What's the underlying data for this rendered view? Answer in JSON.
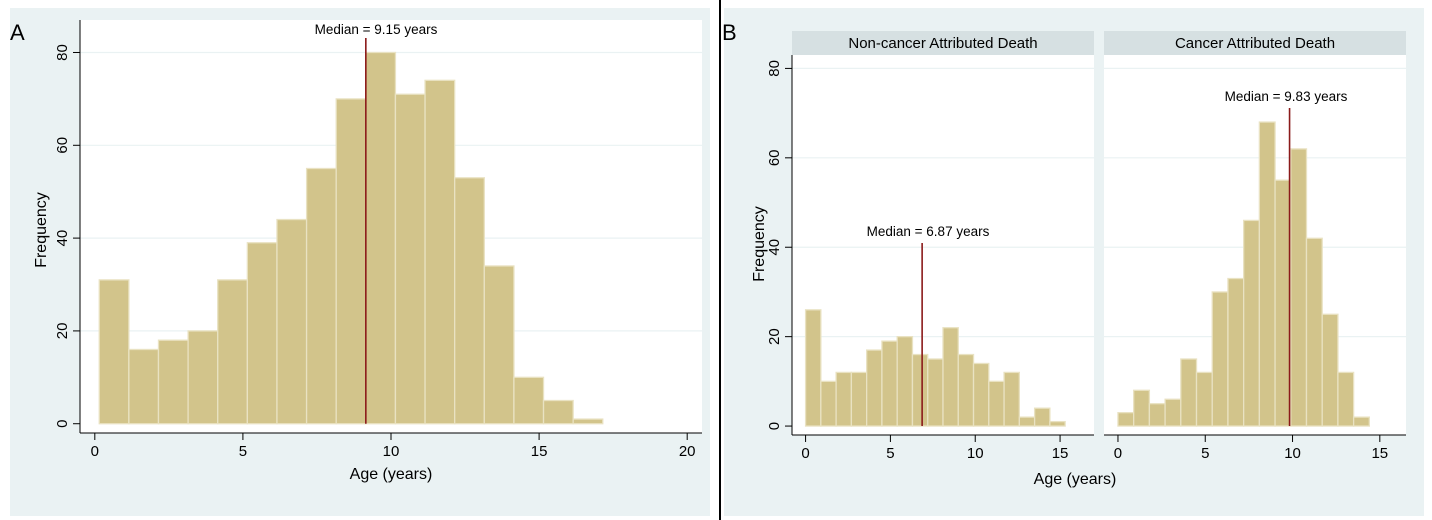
{
  "chart_data": [
    {
      "panel_label": "A",
      "type": "bar",
      "subtype": "histogram",
      "xlabel": "Age (years)",
      "ylabel": "Frequency",
      "xlim": [
        -0.5,
        20.5
      ],
      "ylim": [
        -2,
        87
      ],
      "xticks": [
        0,
        5,
        10,
        15,
        20
      ],
      "yticks": [
        0,
        20,
        40,
        60,
        80
      ],
      "grid": true,
      "bin_start": 0.15,
      "bin_width": 1.0,
      "values": [
        31,
        16,
        18,
        20,
        31,
        39,
        44,
        55,
        70,
        80,
        71,
        74,
        53,
        34,
        10,
        5,
        1
      ],
      "median": {
        "value": 9.15,
        "label": "Median = 9.15 years"
      }
    },
    {
      "panel_label": "B",
      "type": "bar",
      "subtype": "histogram",
      "xlabel": "Age (years)",
      "ylabel": "Frequency",
      "ylim": [
        -2,
        83
      ],
      "yticks": [
        0,
        20,
        40,
        60,
        80
      ],
      "grid": true,
      "facets": [
        {
          "title": "Non-cancer Attributed Death",
          "xlim": [
            -0.8,
            17
          ],
          "xticks": [
            0,
            5,
            10,
            15
          ],
          "bin_start": 0.0,
          "bin_width": 0.9,
          "values": [
            26,
            10,
            12,
            12,
            17,
            19,
            20,
            16,
            15,
            22,
            16,
            14,
            10,
            12,
            2,
            4,
            1
          ],
          "median": {
            "value": 6.87,
            "label": "Median = 6.87 years"
          }
        },
        {
          "title": "Cancer Attributed Death",
          "xlim": [
            -0.8,
            16.5
          ],
          "xticks": [
            0,
            5,
            10,
            15
          ],
          "bin_start": 0.0,
          "bin_width": 0.9,
          "values": [
            3,
            8,
            5,
            6,
            15,
            12,
            30,
            33,
            46,
            68,
            55,
            62,
            42,
            25,
            12,
            2
          ],
          "median": {
            "value": 9.83,
            "label": "Median = 9.83 years"
          }
        }
      ]
    }
  ]
}
